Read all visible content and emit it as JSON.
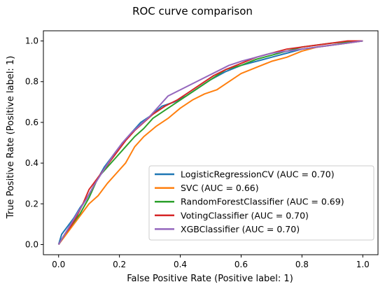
{
  "chart_data": {
    "type": "line",
    "title": "ROC curve comparison",
    "xlabel": "False Positive Rate (Positive label: 1)",
    "ylabel": "True Positive Rate (Positive label: 1)",
    "xlim": [
      -0.05,
      1.05
    ],
    "ylim": [
      -0.05,
      1.05
    ],
    "xticks": [
      "0.0",
      "0.2",
      "0.4",
      "0.6",
      "0.8",
      "1.0"
    ],
    "yticks": [
      "0.0",
      "0.2",
      "0.4",
      "0.6",
      "0.8",
      "1.0"
    ],
    "grid": false,
    "legend_position": "lower-right",
    "series": [
      {
        "name": "LogisticRegressionCV (AUC = 0.70)",
        "color": "#1f77b4",
        "x": [
          0,
          0.01,
          0.03,
          0.05,
          0.07,
          0.09,
          0.12,
          0.15,
          0.18,
          0.21,
          0.24,
          0.27,
          0.3,
          0.34,
          0.38,
          0.42,
          0.46,
          0.5,
          0.55,
          0.6,
          0.65,
          0.7,
          0.75,
          0.8,
          0.85,
          0.9,
          0.95,
          1.0
        ],
        "y": [
          0,
          0.05,
          0.09,
          0.13,
          0.18,
          0.22,
          0.3,
          0.38,
          0.44,
          0.5,
          0.55,
          0.6,
          0.63,
          0.68,
          0.7,
          0.73,
          0.77,
          0.81,
          0.85,
          0.88,
          0.9,
          0.92,
          0.94,
          0.96,
          0.97,
          0.98,
          0.99,
          1.0
        ]
      },
      {
        "name": "SVC (AUC = 0.66)",
        "color": "#ff7f0e",
        "x": [
          0,
          0.02,
          0.04,
          0.07,
          0.1,
          0.13,
          0.16,
          0.19,
          0.22,
          0.25,
          0.28,
          0.32,
          0.36,
          0.4,
          0.44,
          0.48,
          0.52,
          0.56,
          0.6,
          0.65,
          0.7,
          0.75,
          0.8,
          0.85,
          0.9,
          0.95,
          1.0
        ],
        "y": [
          0,
          0.04,
          0.08,
          0.14,
          0.2,
          0.24,
          0.3,
          0.35,
          0.4,
          0.48,
          0.53,
          0.58,
          0.62,
          0.67,
          0.71,
          0.74,
          0.76,
          0.8,
          0.84,
          0.87,
          0.9,
          0.92,
          0.95,
          0.97,
          0.98,
          0.99,
          1.0
        ]
      },
      {
        "name": "RandomForestClassifier (AUC = 0.69)",
        "color": "#2ca02c",
        "x": [
          0,
          0.02,
          0.04,
          0.07,
          0.1,
          0.13,
          0.16,
          0.19,
          0.22,
          0.25,
          0.28,
          0.31,
          0.35,
          0.39,
          0.43,
          0.47,
          0.51,
          0.55,
          0.6,
          0.65,
          0.7,
          0.75,
          0.8,
          0.85,
          0.9,
          0.95,
          1.0
        ],
        "y": [
          0,
          0.05,
          0.09,
          0.15,
          0.23,
          0.33,
          0.38,
          0.43,
          0.48,
          0.53,
          0.57,
          0.62,
          0.66,
          0.7,
          0.74,
          0.78,
          0.82,
          0.86,
          0.88,
          0.91,
          0.93,
          0.95,
          0.97,
          0.98,
          0.99,
          0.995,
          1.0
        ]
      },
      {
        "name": "VotingClassifier (AUC = 0.70)",
        "color": "#d62728",
        "x": [
          0,
          0.02,
          0.04,
          0.06,
          0.08,
          0.1,
          0.13,
          0.16,
          0.19,
          0.22,
          0.25,
          0.28,
          0.31,
          0.35,
          0.39,
          0.43,
          0.47,
          0.51,
          0.55,
          0.6,
          0.65,
          0.7,
          0.75,
          0.8,
          0.85,
          0.9,
          0.95,
          1.0
        ],
        "y": [
          0,
          0.05,
          0.09,
          0.14,
          0.2,
          0.27,
          0.33,
          0.39,
          0.45,
          0.51,
          0.56,
          0.6,
          0.64,
          0.68,
          0.71,
          0.75,
          0.79,
          0.83,
          0.86,
          0.89,
          0.92,
          0.94,
          0.96,
          0.97,
          0.98,
          0.99,
          1.0,
          1.0
        ]
      },
      {
        "name": "XGBClassifier (AUC = 0.70)",
        "color": "#9467bd",
        "x": [
          0,
          0.02,
          0.04,
          0.06,
          0.09,
          0.12,
          0.15,
          0.18,
          0.21,
          0.24,
          0.27,
          0.3,
          0.33,
          0.36,
          0.4,
          0.44,
          0.48,
          0.52,
          0.56,
          0.6,
          0.65,
          0.7,
          0.75,
          0.8,
          0.85,
          0.9,
          0.95,
          1.0
        ],
        "y": [
          0,
          0.05,
          0.1,
          0.15,
          0.22,
          0.3,
          0.37,
          0.44,
          0.5,
          0.55,
          0.59,
          0.63,
          0.68,
          0.73,
          0.76,
          0.79,
          0.82,
          0.85,
          0.88,
          0.9,
          0.92,
          0.94,
          0.95,
          0.96,
          0.97,
          0.98,
          0.99,
          1.0
        ]
      }
    ]
  }
}
